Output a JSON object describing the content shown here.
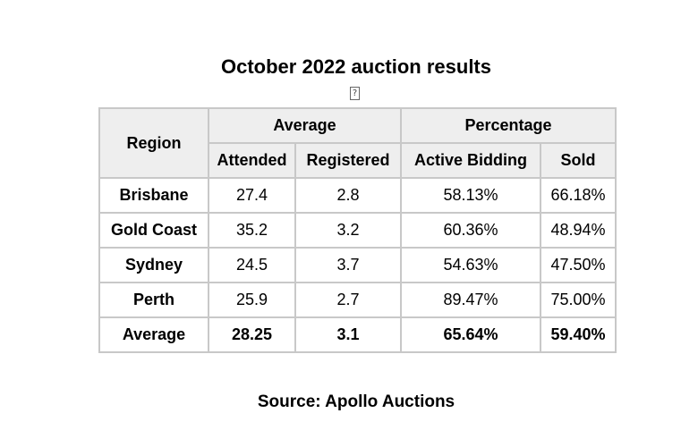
{
  "title": "October 2022 auction results",
  "image_placeholder_glyph": "?",
  "table": {
    "region_header": "Region",
    "group_headers": {
      "average": "Average",
      "percentage": "Percentage"
    },
    "sub_headers": {
      "attended": "Attended",
      "registered": "Registered",
      "active_bidding": "Active Bidding",
      "sold": "Sold"
    },
    "rows": [
      {
        "region": "Brisbane",
        "attended": "27.4",
        "registered": "2.8",
        "active_bidding": "58.13%",
        "sold": "66.18%"
      },
      {
        "region": "Gold Coast",
        "attended": "35.2",
        "registered": "3.2",
        "active_bidding": "60.36%",
        "sold": "48.94%"
      },
      {
        "region": "Sydney",
        "attended": "24.5",
        "registered": "3.7",
        "active_bidding": "54.63%",
        "sold": "47.50%"
      },
      {
        "region": "Perth",
        "attended": "25.9",
        "registered": "2.7",
        "active_bidding": "89.47%",
        "sold": "75.00%"
      },
      {
        "region": "Average",
        "attended": "28.25",
        "registered": "3.1",
        "active_bidding": "65.64%",
        "sold": "59.40%"
      }
    ]
  },
  "source": "Source: Apollo Auctions"
}
